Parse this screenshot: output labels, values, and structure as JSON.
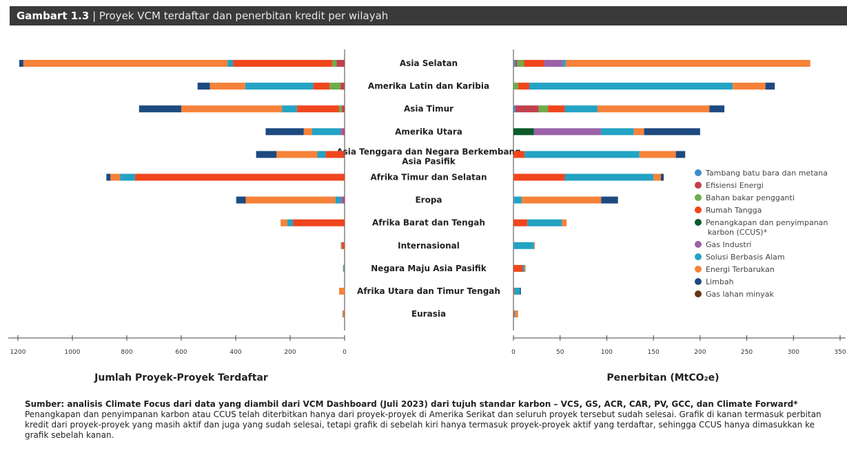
{
  "header": {
    "figure_label": "Gambart 1.3",
    "separator": " | ",
    "title": "Proyek VCM terdaftar dan penerbitan kredit per wilayah"
  },
  "chart_data": {
    "type": "bar",
    "orientation": "horizontal",
    "stacked": true,
    "categories": [
      "Asia Selatan",
      "Amerika Latin dan Karibia",
      "Asia Timur",
      "Amerika Utara",
      "Asia Tenggara dan Negara Berkembang Asia Pasifik",
      "Afrika Timur dan Selatan",
      "Eropa",
      "Afrika Barat dan Tengah",
      "Internasional",
      "Negara Maju Asia Pasifik",
      "Afrika Utara dan Timur Tengah",
      "Eurasia"
    ],
    "legend_placement": "right",
    "series_styles": [
      {
        "name": "Tambang batu bara dan metana",
        "color": "#3d8fc6"
      },
      {
        "name": "Efisiensi Energi",
        "color": "#c0414e"
      },
      {
        "name": "Bahan bakar pengganti",
        "color": "#6cad4a"
      },
      {
        "name": "Rumah Tangga",
        "color": "#f0461e"
      },
      {
        "name": "Penangkapan dan penyimpanan karbon (CCUS)*",
        "color": "#0d5a2a"
      },
      {
        "name": "Gas Industri",
        "color": "#9a62a8"
      },
      {
        "name": "Solusi Berbasis Alam",
        "color": "#23a3c3"
      },
      {
        "name": "Energi Terbarukan",
        "color": "#f6823a"
      },
      {
        "name": "Limbah",
        "color": "#1d4a80"
      },
      {
        "name": "Gas lahan minyak",
        "color": "#6b3310"
      }
    ],
    "charts": [
      {
        "id": "left",
        "xlabel": "Jumlah Proyek-Proyek Terdaftar",
        "xlim": [
          0,
          1200
        ],
        "xticks": [
          1200,
          1000,
          800,
          600,
          400,
          200,
          0
        ],
        "reversed": true,
        "series": [
          {
            "name": "Tambang batu bara dan metana",
            "values": [
              0,
              0,
              0,
              0,
              0,
              0,
              0,
              0,
              0,
              0,
              0,
              0
            ]
          },
          {
            "name": "Efisiensi Energi",
            "values": [
              30,
              15,
              10,
              5,
              5,
              0,
              5,
              0,
              2,
              0,
              0,
              0
            ]
          },
          {
            "name": "Bahan bakar pengganti",
            "values": [
              15,
              40,
              10,
              0,
              0,
              0,
              0,
              0,
              0,
              0,
              0,
              0
            ]
          },
          {
            "name": "Rumah Tangga",
            "values": [
              365,
              60,
              155,
              0,
              65,
              770,
              0,
              190,
              8,
              0,
              0,
              2
            ]
          },
          {
            "name": "Penangkapan dan penyimpanan karbon (CCUS)*",
            "values": [
              0,
              0,
              0,
              0,
              0,
              0,
              0,
              0,
              0,
              0,
              0,
              0
            ]
          },
          {
            "name": "Gas Industri",
            "values": [
              0,
              0,
              0,
              10,
              0,
              0,
              8,
              0,
              0,
              0,
              0,
              0
            ]
          },
          {
            "name": "Solusi Berbasis Alam",
            "values": [
              20,
              250,
              55,
              105,
              30,
              55,
              20,
              20,
              2,
              4,
              0,
              2
            ]
          },
          {
            "name": "Energi Terbarukan",
            "values": [
              750,
              130,
              370,
              30,
              150,
              35,
              330,
              25,
              2,
              2,
              20,
              4
            ]
          },
          {
            "name": "Limbah",
            "values": [
              15,
              45,
              155,
              140,
              75,
              15,
              35,
              0,
              0,
              0,
              0,
              0
            ]
          },
          {
            "name": "Gas lahan minyak",
            "values": [
              0,
              0,
              0,
              0,
              0,
              0,
              0,
              0,
              0,
              0,
              0,
              0
            ]
          }
        ]
      },
      {
        "id": "right",
        "xlabel": "Penerbitan (MtCO₂e)",
        "xlim": [
          0,
          350
        ],
        "xticks": [
          0,
          50,
          100,
          150,
          200,
          250,
          300,
          350
        ],
        "series": [
          {
            "name": "Tambang batu bara dan metana",
            "values": [
              2,
              0,
              2,
              0,
              0,
              0,
              1,
              0,
              0,
              0,
              0,
              0
            ]
          },
          {
            "name": "Efisiensi Energi",
            "values": [
              2,
              0,
              25,
              0,
              0,
              0,
              0,
              0,
              0,
              0,
              0,
              0
            ]
          },
          {
            "name": "Bahan bakar pengganti",
            "values": [
              7,
              5,
              10,
              0,
              0,
              0,
              0,
              0,
              0,
              0,
              0,
              0
            ]
          },
          {
            "name": "Rumah Tangga",
            "values": [
              22,
              12,
              18,
              0,
              12,
              55,
              0,
              15,
              0,
              10,
              1,
              1
            ]
          },
          {
            "name": "Penangkapan dan penyimpanan karbon (CCUS)*",
            "values": [
              0,
              0,
              0,
              22,
              0,
              0,
              0,
              0,
              0,
              0,
              0,
              0
            ]
          },
          {
            "name": "Gas Industri",
            "values": [
              20,
              0,
              0,
              72,
              0,
              0,
              0,
              0,
              0,
              0,
              0,
              0
            ]
          },
          {
            "name": "Solusi Berbasis Alam",
            "values": [
              3,
              218,
              35,
              35,
              123,
              95,
              8,
              37,
              22,
              2,
              6,
              1
            ]
          },
          {
            "name": "Energi Terbarukan",
            "values": [
              262,
              35,
              120,
              11,
              39,
              8,
              85,
              5,
              1,
              1,
              0,
              3
            ]
          },
          {
            "name": "Limbah",
            "values": [
              0,
              10,
              16,
              60,
              10,
              3,
              18,
              0,
              0,
              0,
              1,
              0
            ]
          },
          {
            "name": "Gas lahan minyak",
            "values": [
              0,
              0,
              0,
              0,
              0,
              0,
              0,
              0,
              0,
              0,
              0,
              0
            ]
          }
        ]
      }
    ]
  },
  "footer": {
    "bold": "Sumber: analisis Climate Focus dari data yang diambil dari VCM Dashboard (Juli 2023) dari tujuh standar karbon – VCS, GS, ACR, CAR, PV, GCC, dan Climate Forward*",
    "text": " Penangkapan dan penyimpanan karbon atau CCUS telah diterbitkan hanya dari proyek-proyek di Amerika Serikat dan seluruh proyek tersebut sudah selesai. Grafik di kanan termasuk perbitan kredit dari proyek-proyek yang masih aktif dan juga yang sudah selesai, tetapi grafik di sebelah kiri hanya termasuk proyek-proyek aktif yang terdaftar, sehingga CCUS hanya dimasukkan ke grafik sebelah kanan."
  }
}
